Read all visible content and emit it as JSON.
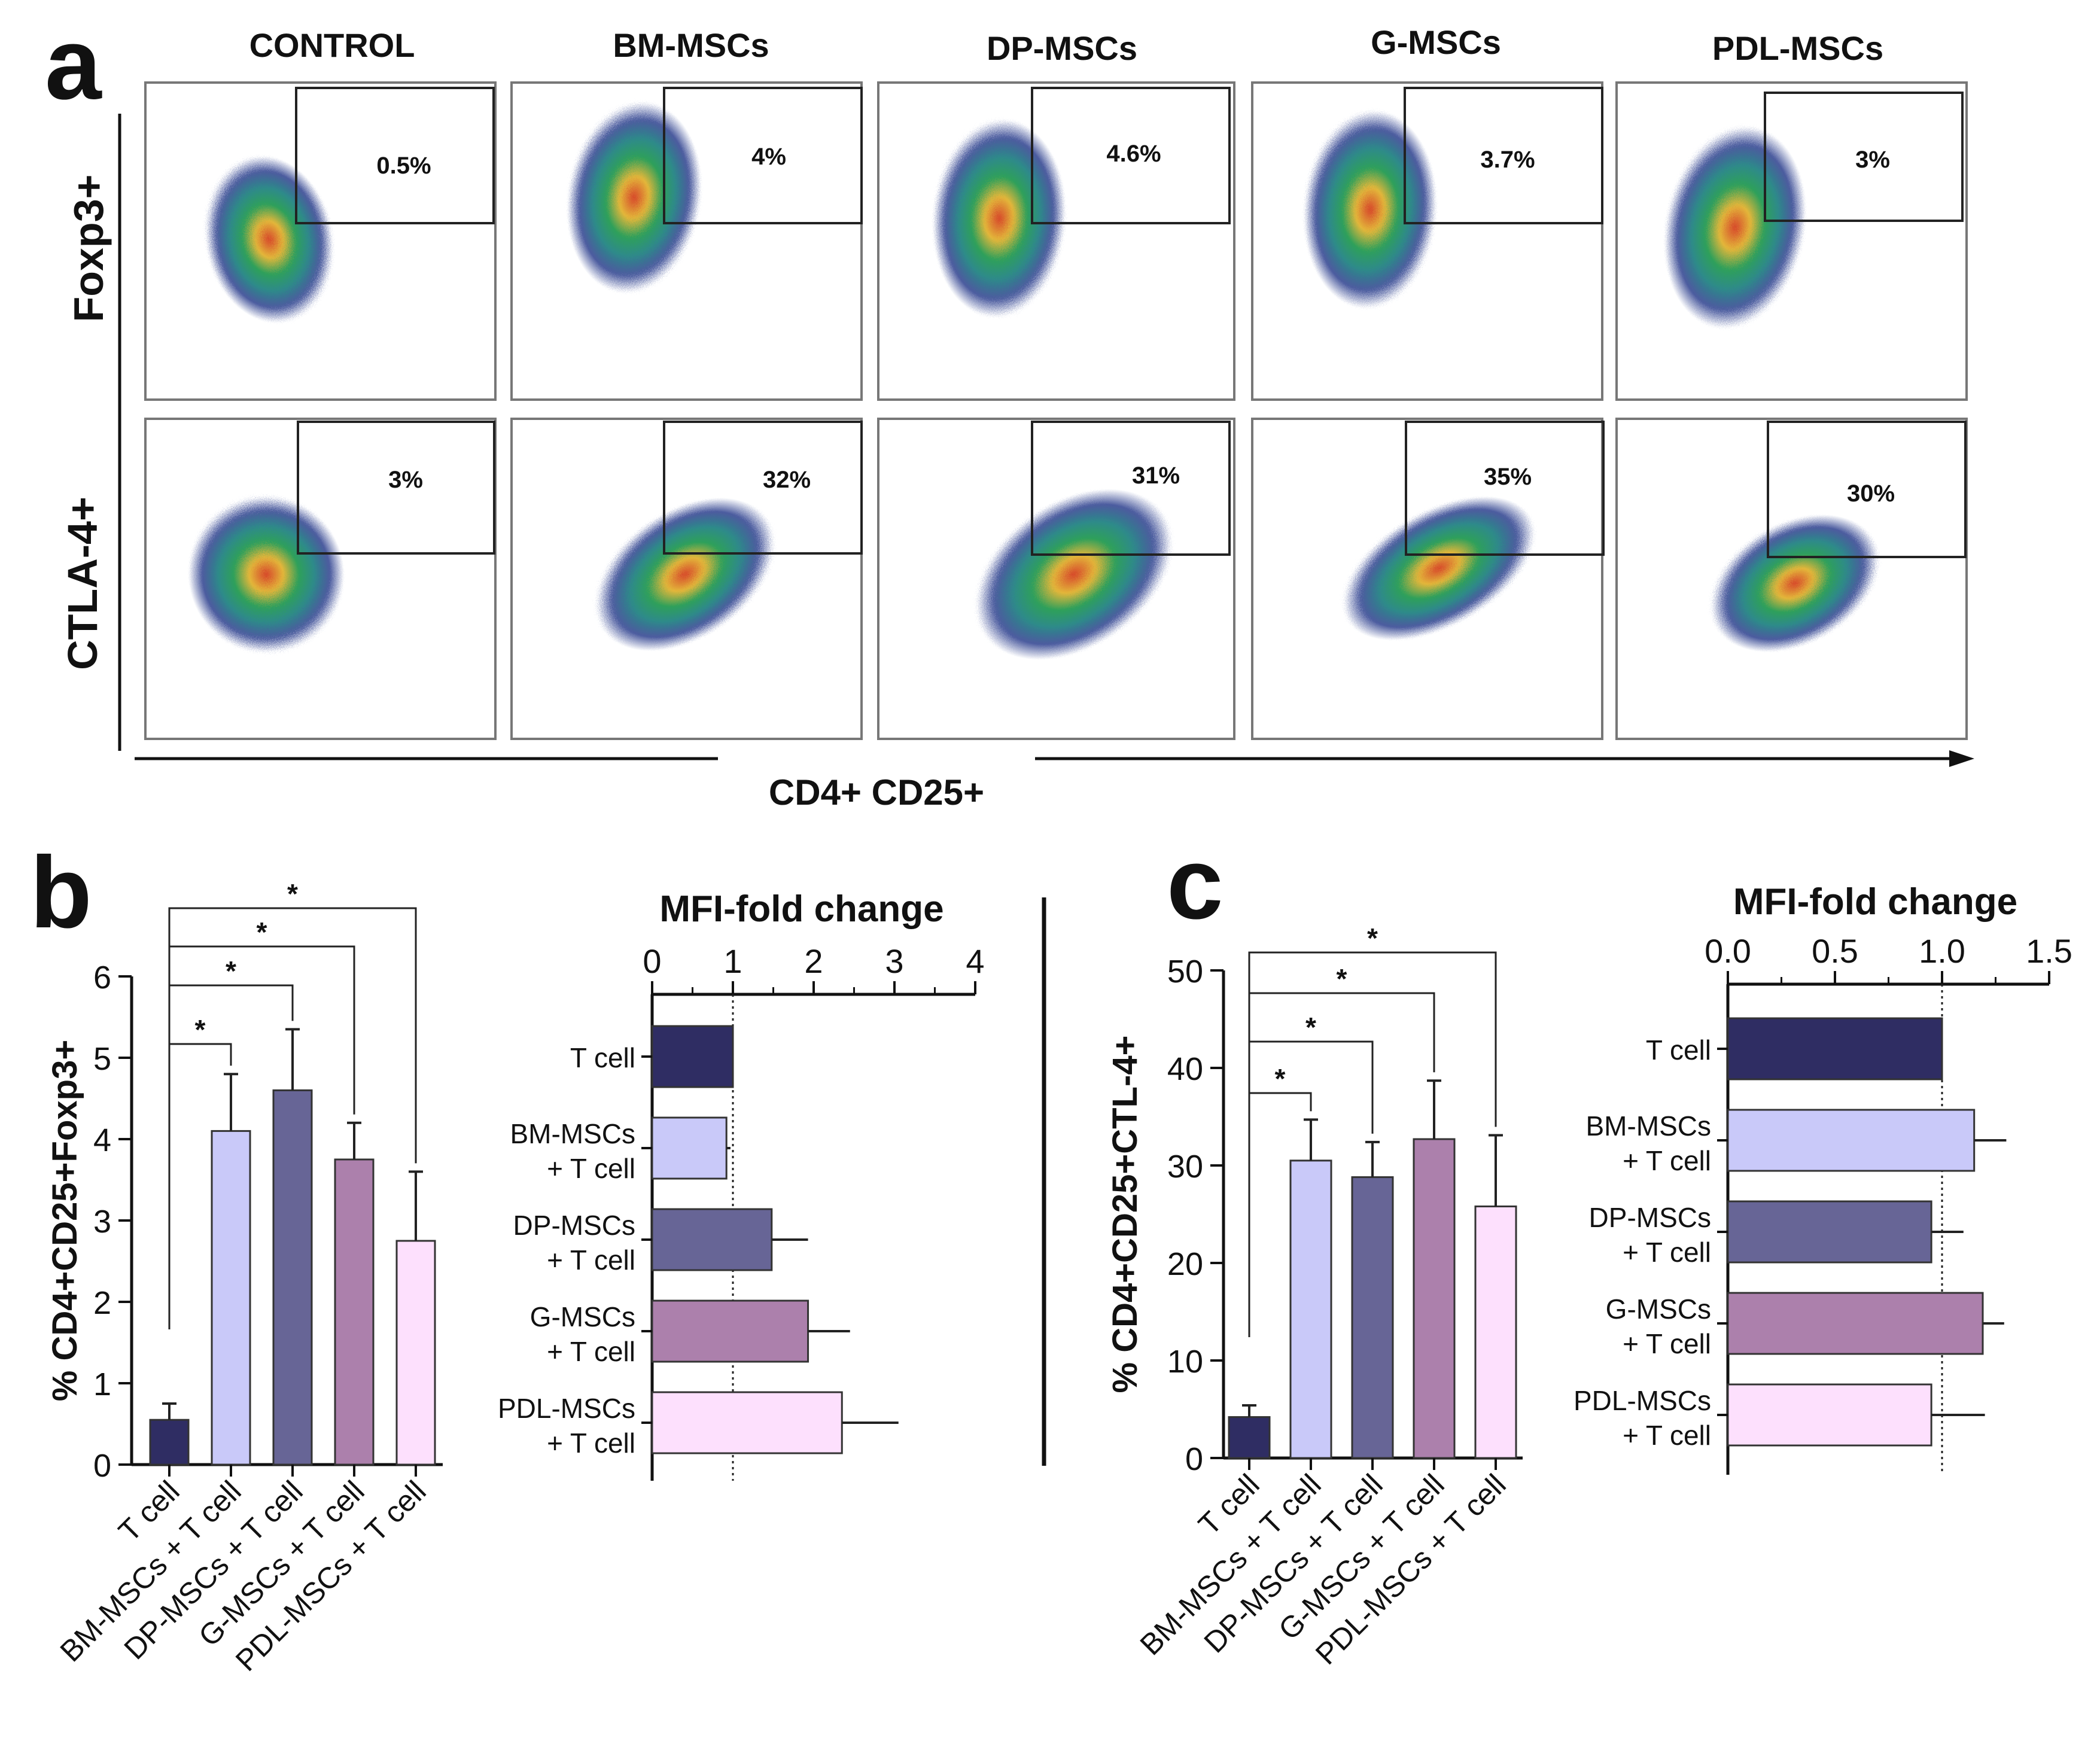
{
  "panel_labels": {
    "a": "a",
    "b": "b",
    "c": "c"
  },
  "colors": {
    "tcell": "#2f2d63",
    "bm": "#c9c9f9",
    "dp": "#676596",
    "g": "#ac80ac",
    "pdl": "#fde0fd",
    "axis": "#111111",
    "gate": "#222222"
  },
  "chart_data": [
    {
      "id": "a",
      "type": "flow-cytometry-grid",
      "column_headers": [
        "CONTROL",
        "BM-MSCs",
        "DP-MSCs",
        "G-MSCs",
        "PDL-MSCs"
      ],
      "row_labels": [
        "Foxp3+",
        "CTLA-4+"
      ],
      "xlabel": "CD4+ CD25+",
      "gate_percentages": [
        [
          "0.5%",
          "4%",
          "4.6%",
          "3.7%",
          "3%"
        ],
        [
          "3%",
          "32%",
          "31%",
          "35%",
          "30%"
        ]
      ]
    },
    {
      "id": "b-bars",
      "type": "bar",
      "ylabel": "% CD4+CD25+Foxp3+",
      "ylim": [
        0,
        6
      ],
      "yticks": [
        "0",
        "1",
        "2",
        "3",
        "4",
        "5",
        "6"
      ],
      "categories": [
        "T cell",
        "BM-MSCs + T cell",
        "DP-MSCs + T cell",
        "G-MSCs + T cell",
        "PDL-MSCs + T cell"
      ],
      "values": [
        0.55,
        4.1,
        4.6,
        3.75,
        2.75
      ],
      "errors": [
        0.2,
        0.7,
        0.75,
        0.45,
        0.85
      ],
      "significance": [
        {
          "from": 0,
          "to": 1,
          "label": "*"
        },
        {
          "from": 0,
          "to": 2,
          "label": "*"
        },
        {
          "from": 0,
          "to": 3,
          "label": "*"
        },
        {
          "from": 0,
          "to": 4,
          "label": "*"
        }
      ]
    },
    {
      "id": "b-mfi",
      "type": "bar",
      "orientation": "horizontal",
      "title": "MFI-fold change",
      "xlim": [
        0,
        4
      ],
      "xticks": [
        "0",
        "1",
        "2",
        "3",
        "4"
      ],
      "reference_line": 1,
      "categories": [
        [
          "T cell"
        ],
        [
          "BM-MSCs",
          "+ T cell"
        ],
        [
          "DP-MSCs",
          "+ T cell"
        ],
        [
          "G-MSCs",
          "+ T cell"
        ],
        [
          "PDL-MSCs",
          "+ T cell"
        ]
      ],
      "values": [
        1.0,
        0.92,
        1.48,
        1.93,
        2.35
      ],
      "errors": [
        0.0,
        0.05,
        0.45,
        0.52,
        0.7
      ]
    },
    {
      "id": "c-bars",
      "type": "bar",
      "ylabel": "% CD4+CD25+CTL-4+",
      "ylim": [
        0,
        50
      ],
      "yticks": [
        "0",
        "10",
        "20",
        "30",
        "40",
        "50"
      ],
      "categories": [
        "T cell",
        "BM-MSCs + T cell",
        "DP-MSCs + T cell",
        "G-MSCs + T cell",
        "PDL-MSCs + T cell"
      ],
      "values": [
        4.2,
        30.5,
        28.8,
        32.7,
        25.8
      ],
      "errors": [
        1.2,
        4.2,
        3.6,
        6.0,
        7.3
      ],
      "significance": [
        {
          "from": 0,
          "to": 1,
          "label": "*"
        },
        {
          "from": 0,
          "to": 2,
          "label": "*"
        },
        {
          "from": 0,
          "to": 3,
          "label": "*"
        },
        {
          "from": 0,
          "to": 4,
          "label": "*"
        }
      ]
    },
    {
      "id": "c-mfi",
      "type": "bar",
      "orientation": "horizontal",
      "title": "MFI-fold change",
      "xlim": [
        0,
        1.5
      ],
      "xticks": [
        "0.0",
        "0.5",
        "1.0",
        "1.5"
      ],
      "reference_line": 1,
      "categories": [
        [
          "T cell"
        ],
        [
          "BM-MSCs",
          "+ T cell"
        ],
        [
          "DP-MSCs",
          "+ T cell"
        ],
        [
          "G-MSCs",
          "+ T cell"
        ],
        [
          "PDL-MSCs",
          "+ T cell"
        ]
      ],
      "values": [
        1.0,
        1.15,
        0.95,
        1.19,
        0.95
      ],
      "errors": [
        0.0,
        0.15,
        0.15,
        0.1,
        0.25
      ]
    }
  ]
}
